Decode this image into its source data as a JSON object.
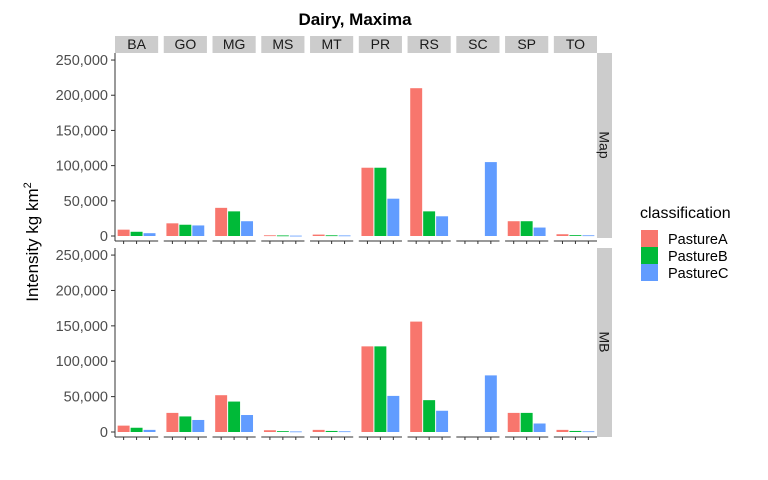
{
  "chart_data": {
    "type": "bar",
    "title": "Dairy, Maxima",
    "ylabel": "Intensity kg km",
    "ylabel_superscript": "2",
    "ylim": [
      0,
      260000
    ],
    "y_ticks": [
      "0",
      "50,000",
      "100,000",
      "150,000",
      "200,000",
      "250,000"
    ],
    "y_tick_values": [
      0,
      50000,
      100000,
      150000,
      200000,
      250000
    ],
    "categories": [
      "BA",
      "GO",
      "MG",
      "MS",
      "MT",
      "PR",
      "RS",
      "SC",
      "SP",
      "TO"
    ],
    "panels": [
      {
        "label": "Map",
        "series": [
          {
            "name": "PastureA",
            "values": [
              9000,
              18000,
              40000,
              1000,
              2000,
              97000,
              210000,
              0,
              21000,
              2500
            ]
          },
          {
            "name": "PastureB",
            "values": [
              6000,
              16000,
              35000,
              800,
              1000,
              97000,
              35000,
              0,
              21000,
              1200
            ]
          },
          {
            "name": "PastureC",
            "values": [
              4000,
              15000,
              21000,
              500,
              800,
              53000,
              28000,
              105000,
              12000,
              1000
            ]
          }
        ]
      },
      {
        "label": "MB",
        "series": [
          {
            "name": "PastureA",
            "values": [
              9000,
              27000,
              52000,
              2500,
              3000,
              121000,
              156000,
              0,
              27000,
              3000
            ]
          },
          {
            "name": "PastureB",
            "values": [
              6000,
              22000,
              43000,
              1200,
              1500,
              121000,
              45000,
              0,
              27000,
              1500
            ]
          },
          {
            "name": "PastureC",
            "values": [
              3000,
              17000,
              24000,
              800,
              1000,
              51000,
              30000,
              80000,
              12000,
              1000
            ]
          }
        ]
      }
    ],
    "legend": {
      "title": "classification",
      "position": "right",
      "entries": [
        "PastureA",
        "PastureB",
        "PastureC"
      ]
    },
    "colors": {
      "PastureA": "#F8766D",
      "PastureB": "#00BA38",
      "PastureC": "#619CFF",
      "strip": "#cccccc",
      "axis": "#333333"
    },
    "grid": false
  }
}
